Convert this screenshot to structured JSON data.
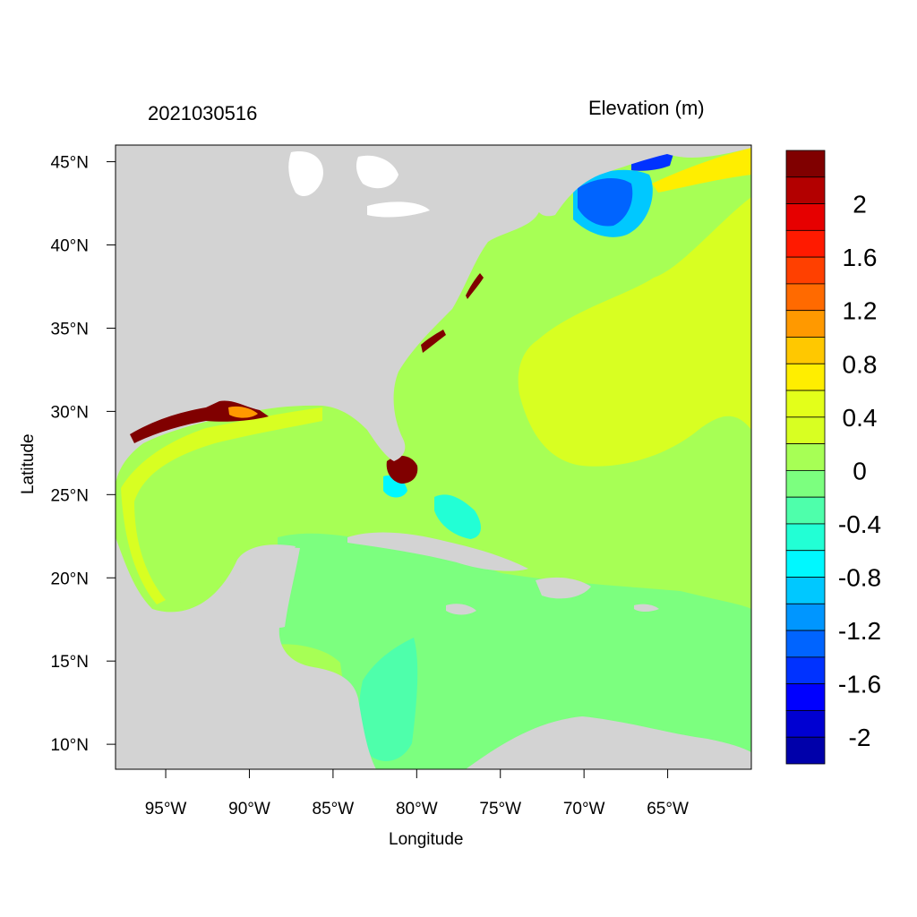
{
  "figure": {
    "date_stamp": "2021030516",
    "variable_label": "Elevation (m)"
  },
  "chart_data": {
    "type": "heatmap",
    "title": "Elevation (m)",
    "subtitle": "2021030516",
    "xlabel": "Longitude",
    "ylabel": "Latitude",
    "xlim": [
      -98,
      -60
    ],
    "ylim": [
      8.5,
      46
    ],
    "x_ticks": [
      {
        "value": -95,
        "label": "95°W"
      },
      {
        "value": -90,
        "label": "90°W"
      },
      {
        "value": -85,
        "label": "85°W"
      },
      {
        "value": -80,
        "label": "80°W"
      },
      {
        "value": -75,
        "label": "75°W"
      },
      {
        "value": -70,
        "label": "70°W"
      },
      {
        "value": -65,
        "label": "65°W"
      }
    ],
    "y_ticks": [
      {
        "value": 45,
        "label": "45°N"
      },
      {
        "value": 40,
        "label": "40°N"
      },
      {
        "value": 35,
        "label": "35°N"
      },
      {
        "value": 30,
        "label": "30°N"
      },
      {
        "value": 25,
        "label": "25°N"
      },
      {
        "value": 20,
        "label": "20°N"
      },
      {
        "value": 15,
        "label": "15°N"
      },
      {
        "value": 10,
        "label": "10°N"
      }
    ],
    "land_color": "#d3d3d3",
    "colorbar": {
      "bins": [
        {
          "from": 2.2,
          "to": 2.4,
          "color": "#800000"
        },
        {
          "from": 2.0,
          "to": 2.2,
          "color": "#b30000"
        },
        {
          "from": 1.8,
          "to": 2.0,
          "color": "#e60000"
        },
        {
          "from": 1.6,
          "to": 1.8,
          "color": "#ff1a00"
        },
        {
          "from": 1.4,
          "to": 1.6,
          "color": "#ff4000"
        },
        {
          "from": 1.2,
          "to": 1.4,
          "color": "#ff6a00"
        },
        {
          "from": 1.0,
          "to": 1.2,
          "color": "#ff9900"
        },
        {
          "from": 0.8,
          "to": 1.0,
          "color": "#ffc800"
        },
        {
          "from": 0.6,
          "to": 0.8,
          "color": "#ffee00"
        },
        {
          "from": 0.4,
          "to": 0.6,
          "color": "#e3ff1a"
        },
        {
          "from": 0.2,
          "to": 0.4,
          "color": "#d8ff22"
        },
        {
          "from": 0.0,
          "to": 0.2,
          "color": "#a7ff55"
        },
        {
          "from": -0.2,
          "to": 0.0,
          "color": "#7cff7f"
        },
        {
          "from": -0.4,
          "to": -0.2,
          "color": "#4effab"
        },
        {
          "from": -0.6,
          "to": -0.4,
          "color": "#22ffd5"
        },
        {
          "from": -0.8,
          "to": -0.6,
          "color": "#00f8ff"
        },
        {
          "from": -1.0,
          "to": -0.8,
          "color": "#00c8ff"
        },
        {
          "from": -1.2,
          "to": -1.0,
          "color": "#0096ff"
        },
        {
          "from": -1.4,
          "to": -1.2,
          "color": "#0064ff"
        },
        {
          "from": -1.6,
          "to": -1.4,
          "color": "#0032ff"
        },
        {
          "from": -1.8,
          "to": -1.6,
          "color": "#0000ff"
        },
        {
          "from": -2.0,
          "to": -1.8,
          "color": "#0000d2"
        },
        {
          "from": -2.2,
          "to": -2.0,
          "color": "#0000aa"
        }
      ],
      "labels": [
        {
          "value": 2.0,
          "text": "2"
        },
        {
          "value": 1.6,
          "text": "1.6"
        },
        {
          "value": 1.2,
          "text": "1.2"
        },
        {
          "value": 0.8,
          "text": "0.8"
        },
        {
          "value": 0.4,
          "text": "0.4"
        },
        {
          "value": 0.0,
          "text": "0"
        },
        {
          "value": -0.4,
          "text": "-0.4"
        },
        {
          "value": -0.8,
          "text": "-0.8"
        },
        {
          "value": -1.2,
          "text": "-1.2"
        },
        {
          "value": -1.6,
          "text": "-1.6"
        },
        {
          "value": -2.0,
          "text": "-2"
        }
      ]
    }
  }
}
